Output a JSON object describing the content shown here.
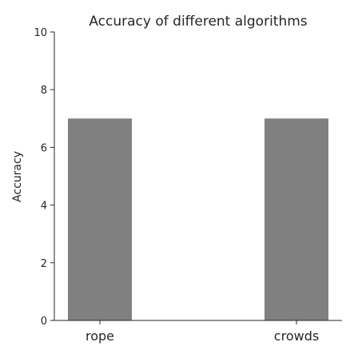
{
  "chart_data": {
    "type": "bar",
    "title": "Accuracy of different algorithms",
    "xlabel": "",
    "ylabel": "Accuracy",
    "categories": [
      "rope",
      "crowds"
    ],
    "values": [
      7,
      7
    ],
    "ylim": [
      0,
      10
    ],
    "yticks": [
      0,
      2,
      4,
      6,
      8,
      10
    ],
    "grid": false,
    "bar_color": "#808080"
  }
}
